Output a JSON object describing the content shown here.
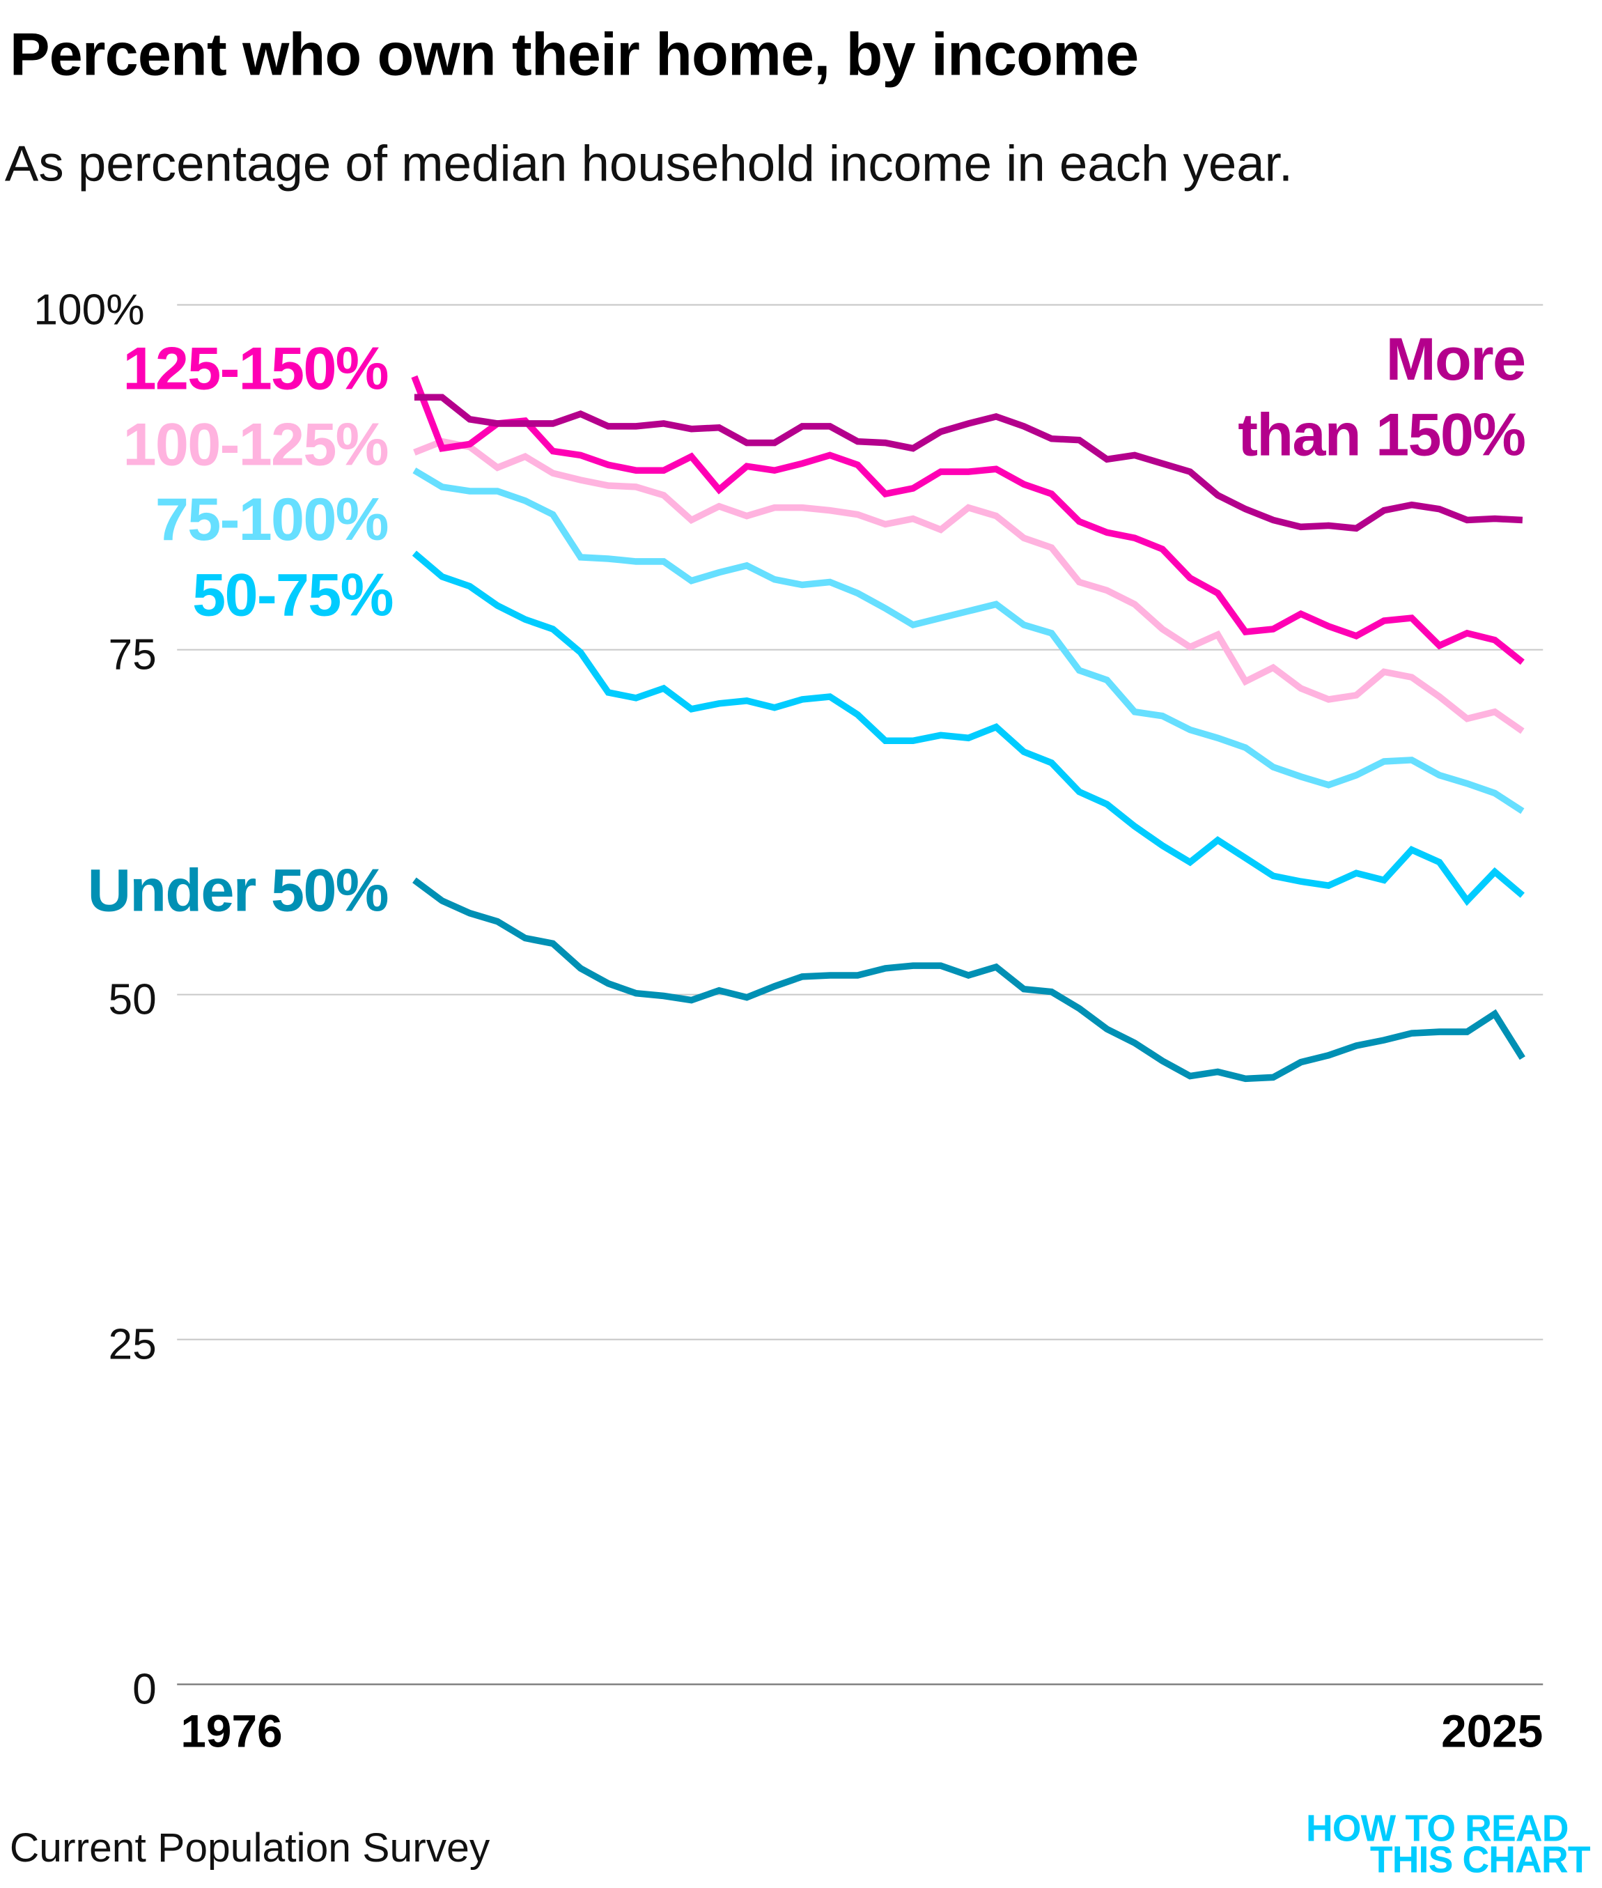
{
  "header": {
    "title": "Percent who own their home, by income",
    "subtitle": "As percentage  of median household income in each year."
  },
  "footer": {
    "source": "Current Population Survey",
    "logo_line1": "HOW TO READ",
    "logo_line2": "THIS CHART"
  },
  "chart_data": {
    "type": "line",
    "title": "Percent who own their home, by income",
    "subtitle": "As percentage  of median household income in each year.",
    "xlabel": "",
    "ylabel": "",
    "ylim": [
      0,
      100
    ],
    "yticks": [
      "0",
      "25",
      "50",
      "75",
      "100%"
    ],
    "ytick_values": [
      0,
      25,
      50,
      75,
      100
    ],
    "xtick_labels": [
      "1976",
      "2025"
    ],
    "grid": true,
    "x": [
      1985,
      1986,
      1987,
      1988,
      1989,
      1990,
      1991,
      1992,
      1993,
      1994,
      1995,
      1996,
      1997,
      1998,
      1999,
      2000,
      2001,
      2002,
      2003,
      2004,
      2005,
      2006,
      2007,
      2008,
      2009,
      2010,
      2011,
      2012,
      2013,
      2014,
      2015,
      2016,
      2017,
      2018,
      2019,
      2020,
      2021,
      2022,
      2023,
      2024,
      2025
    ],
    "series": [
      {
        "name": "More than 150%",
        "label_line1": "More",
        "label_line2": "than 150%",
        "color": "#b4008c",
        "values": [
          93.3,
          93.3,
          91.7,
          91.4,
          91.4,
          91.4,
          92.1,
          91.2,
          91.2,
          91.4,
          91.0,
          91.1,
          90.0,
          90.0,
          91.2,
          91.2,
          90.1,
          90.0,
          89.6,
          90.8,
          91.4,
          91.9,
          91.2,
          90.3,
          90.2,
          88.8,
          89.1,
          88.5,
          87.9,
          86.2,
          85.2,
          84.4,
          83.9,
          84.0,
          83.8,
          85.1,
          85.5,
          85.2,
          84.4,
          84.5,
          84.4
        ]
      },
      {
        "name": "125-150%",
        "color": "#ff00b4",
        "values": [
          94.8,
          89.6,
          89.9,
          91.4,
          91.6,
          89.4,
          89.1,
          88.4,
          88.0,
          88.0,
          89.0,
          86.6,
          88.3,
          88.0,
          88.5,
          89.1,
          88.4,
          86.3,
          86.7,
          87.9,
          87.9,
          88.1,
          87.0,
          86.3,
          84.3,
          83.5,
          83.1,
          82.3,
          80.2,
          79.1,
          76.3,
          76.5,
          77.6,
          76.7,
          76.0,
          77.1,
          77.3,
          75.3,
          76.2,
          75.7,
          74.1
        ]
      },
      {
        "name": "100-125%",
        "color": "#ffb3df",
        "values": [
          89.3,
          90.1,
          89.7,
          88.2,
          89.0,
          87.8,
          87.3,
          86.9,
          86.8,
          86.2,
          84.4,
          85.4,
          84.7,
          85.3,
          85.3,
          85.1,
          84.8,
          84.1,
          84.5,
          83.7,
          85.3,
          84.7,
          83.1,
          82.4,
          79.9,
          79.3,
          78.3,
          76.5,
          75.2,
          76.1,
          72.7,
          73.7,
          72.2,
          71.4,
          71.7,
          73.4,
          73.0,
          71.6,
          70.0,
          70.5,
          69.1
        ]
      },
      {
        "name": "75-100%",
        "color": "#66dfff",
        "values": [
          88.0,
          86.8,
          86.5,
          86.5,
          85.8,
          84.8,
          81.7,
          81.6,
          81.4,
          81.4,
          80.0,
          80.6,
          81.1,
          80.1,
          79.7,
          79.9,
          79.1,
          78.0,
          76.8,
          77.3,
          77.8,
          78.3,
          76.8,
          76.2,
          73.5,
          72.8,
          70.5,
          70.2,
          69.2,
          68.6,
          67.9,
          66.5,
          65.8,
          65.2,
          65.9,
          66.9,
          67.0,
          65.9,
          65.3,
          64.6,
          63.3
        ]
      },
      {
        "name": "50-75%",
        "color": "#00ccff",
        "values": [
          82.0,
          80.3,
          79.6,
          78.2,
          77.2,
          76.5,
          74.8,
          71.9,
          71.5,
          72.2,
          70.7,
          71.1,
          71.3,
          70.8,
          71.4,
          71.6,
          70.3,
          68.4,
          68.4,
          68.8,
          68.6,
          69.4,
          67.6,
          66.8,
          64.7,
          63.8,
          62.2,
          60.8,
          59.6,
          61.2,
          59.9,
          58.6,
          58.2,
          57.9,
          58.8,
          58.3,
          60.5,
          59.6,
          56.8,
          58.9,
          57.2
        ]
      },
      {
        "name": "Under 50%",
        "color": "#0090b4",
        "values": [
          58.3,
          56.8,
          55.9,
          55.3,
          54.1,
          53.7,
          51.9,
          50.8,
          50.1,
          49.9,
          49.6,
          50.3,
          49.8,
          50.6,
          51.3,
          51.4,
          51.4,
          51.9,
          52.1,
          52.1,
          51.4,
          52.0,
          50.4,
          50.2,
          49.0,
          47.5,
          46.5,
          45.2,
          44.1,
          44.4,
          43.9,
          44.0,
          45.1,
          45.6,
          46.3,
          46.7,
          47.2,
          47.3,
          47.3,
          48.6,
          45.4
        ]
      }
    ]
  }
}
